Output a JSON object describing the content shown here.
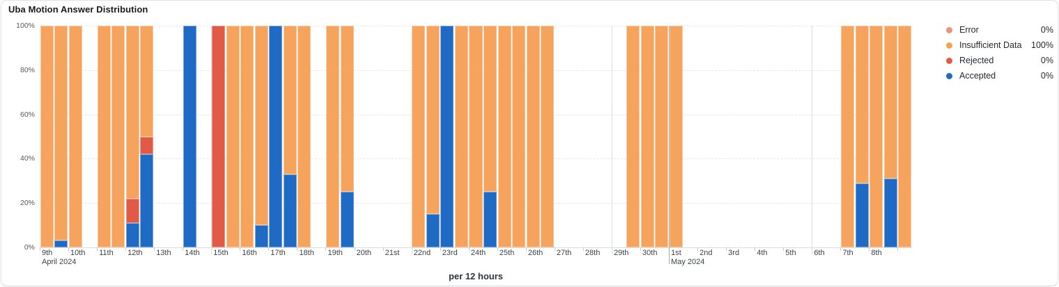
{
  "title": "Uba Motion Answer Distribution",
  "x_axis_title": "per 12 hours",
  "legend": {
    "items": [
      {
        "label": "Error",
        "value": "0%",
        "color": "#ef9181"
      },
      {
        "label": "Insufficient Data",
        "value": "100%",
        "color": "#f6a14e"
      },
      {
        "label": "Rejected",
        "value": "0%",
        "color": "#e05a45"
      },
      {
        "label": "Accepted",
        "value": "0%",
        "color": "#1f6ac5"
      }
    ]
  },
  "chart_data": {
    "type": "bar",
    "stacked": true,
    "unit": "percent",
    "interval": "per 12 hours",
    "ylim": [
      0,
      100
    ],
    "y_tick_labels": [
      "100%",
      "80%",
      "60%",
      "40%",
      "20%",
      "0%"
    ],
    "grid": {
      "horizontal_dashed": true,
      "week_lines_day_indices": [
        6,
        13,
        20,
        27
      ],
      "month_line_day_index": 22
    },
    "day_tick_labels": [
      "9th",
      "10th",
      "11th",
      "12th",
      "13th",
      "14th",
      "15th",
      "16th",
      "17th",
      "18th",
      "19th",
      "20th",
      "21st",
      "22nd",
      "23rd",
      "24th",
      "25th",
      "26th",
      "27th",
      "28th",
      "29th",
      "30th",
      "1st",
      "2nd",
      "3rd",
      "4th",
      "5th",
      "6th",
      "7th",
      "8th"
    ],
    "month_labels": [
      {
        "text": "April 2024",
        "day_index": 0
      },
      {
        "text": "May 2024",
        "day_index": 22
      }
    ],
    "total_slots": 61,
    "stack_order_bottom_to_top": [
      "accepted",
      "rejected",
      "insufficient_data",
      "error"
    ],
    "series_colors": {
      "accepted": "#1f6ac5",
      "rejected": "#e05a45",
      "insufficient_data": "#f6a35e",
      "error": "#ef9181"
    },
    "bars": [
      {
        "slot": 0,
        "slot_label": "Apr 9 AM",
        "accepted": 0,
        "rejected": 0,
        "insufficient_data": 100,
        "error": 0
      },
      {
        "slot": 1,
        "slot_label": "Apr 9 PM",
        "accepted": 3,
        "rejected": 0,
        "insufficient_data": 97,
        "error": 0
      },
      {
        "slot": 2,
        "slot_label": "Apr 10 AM",
        "accepted": 0,
        "rejected": 0,
        "insufficient_data": 100,
        "error": 0
      },
      {
        "slot": 4,
        "slot_label": "Apr 11 AM",
        "accepted": 0,
        "rejected": 0,
        "insufficient_data": 100,
        "error": 0
      },
      {
        "slot": 5,
        "slot_label": "Apr 11 PM",
        "accepted": 0,
        "rejected": 0,
        "insufficient_data": 100,
        "error": 0
      },
      {
        "slot": 6,
        "slot_label": "Apr 12 AM",
        "accepted": 11,
        "rejected": 11,
        "insufficient_data": 78,
        "error": 0
      },
      {
        "slot": 7,
        "slot_label": "Apr 12 PM",
        "accepted": 42,
        "rejected": 8,
        "insufficient_data": 50,
        "error": 0
      },
      {
        "slot": 10,
        "slot_label": "Apr 14 AM",
        "accepted": 100,
        "rejected": 0,
        "insufficient_data": 0,
        "error": 0
      },
      {
        "slot": 12,
        "slot_label": "Apr 15 AM",
        "accepted": 0,
        "rejected": 100,
        "insufficient_data": 0,
        "error": 0
      },
      {
        "slot": 13,
        "slot_label": "Apr 15 PM",
        "accepted": 0,
        "rejected": 0,
        "insufficient_data": 100,
        "error": 0
      },
      {
        "slot": 14,
        "slot_label": "Apr 16 AM",
        "accepted": 0,
        "rejected": 0,
        "insufficient_data": 100,
        "error": 0
      },
      {
        "slot": 15,
        "slot_label": "Apr 16 PM",
        "accepted": 10,
        "rejected": 0,
        "insufficient_data": 90,
        "error": 0
      },
      {
        "slot": 16,
        "slot_label": "Apr 17 AM",
        "accepted": 100,
        "rejected": 0,
        "insufficient_data": 0,
        "error": 0
      },
      {
        "slot": 17,
        "slot_label": "Apr 17 PM",
        "accepted": 33,
        "rejected": 0,
        "insufficient_data": 67,
        "error": 0
      },
      {
        "slot": 18,
        "slot_label": "Apr 18 AM",
        "accepted": 0,
        "rejected": 0,
        "insufficient_data": 100,
        "error": 0
      },
      {
        "slot": 20,
        "slot_label": "Apr 19 AM",
        "accepted": 0,
        "rejected": 0,
        "insufficient_data": 100,
        "error": 0
      },
      {
        "slot": 21,
        "slot_label": "Apr 19 PM",
        "accepted": 25,
        "rejected": 0,
        "insufficient_data": 75,
        "error": 0
      },
      {
        "slot": 26,
        "slot_label": "Apr 22 AM",
        "accepted": 0,
        "rejected": 0,
        "insufficient_data": 100,
        "error": 0
      },
      {
        "slot": 27,
        "slot_label": "Apr 22 PM",
        "accepted": 15,
        "rejected": 0,
        "insufficient_data": 85,
        "error": 0
      },
      {
        "slot": 28,
        "slot_label": "Apr 23 AM",
        "accepted": 100,
        "rejected": 0,
        "insufficient_data": 0,
        "error": 0
      },
      {
        "slot": 29,
        "slot_label": "Apr 23 PM",
        "accepted": 0,
        "rejected": 0,
        "insufficient_data": 100,
        "error": 0
      },
      {
        "slot": 30,
        "slot_label": "Apr 24 AM",
        "accepted": 0,
        "rejected": 0,
        "insufficient_data": 100,
        "error": 0
      },
      {
        "slot": 31,
        "slot_label": "Apr 24 PM",
        "accepted": 25,
        "rejected": 0,
        "insufficient_data": 75,
        "error": 0
      },
      {
        "slot": 32,
        "slot_label": "Apr 25 AM",
        "accepted": 0,
        "rejected": 0,
        "insufficient_data": 100,
        "error": 0
      },
      {
        "slot": 33,
        "slot_label": "Apr 25 PM",
        "accepted": 0,
        "rejected": 0,
        "insufficient_data": 100,
        "error": 0
      },
      {
        "slot": 34,
        "slot_label": "Apr 26 AM",
        "accepted": 0,
        "rejected": 0,
        "insufficient_data": 100,
        "error": 0
      },
      {
        "slot": 35,
        "slot_label": "Apr 26 PM",
        "accepted": 0,
        "rejected": 0,
        "insufficient_data": 100,
        "error": 0
      },
      {
        "slot": 41,
        "slot_label": "Apr 29 PM",
        "accepted": 0,
        "rejected": 0,
        "insufficient_data": 100,
        "error": 0
      },
      {
        "slot": 42,
        "slot_label": "Apr 30 AM",
        "accepted": 0,
        "rejected": 0,
        "insufficient_data": 100,
        "error": 0
      },
      {
        "slot": 43,
        "slot_label": "Apr 30 PM",
        "accepted": 0,
        "rejected": 0,
        "insufficient_data": 100,
        "error": 0
      },
      {
        "slot": 44,
        "slot_label": "May 1 AM",
        "accepted": 0,
        "rejected": 0,
        "insufficient_data": 100,
        "error": 0
      },
      {
        "slot": 56,
        "slot_label": "May 7 AM",
        "accepted": 0,
        "rejected": 0,
        "insufficient_data": 100,
        "error": 0
      },
      {
        "slot": 57,
        "slot_label": "May 7 PM",
        "accepted": 29,
        "rejected": 0,
        "insufficient_data": 71,
        "error": 0
      },
      {
        "slot": 58,
        "slot_label": "May 8 AM",
        "accepted": 0,
        "rejected": 0,
        "insufficient_data": 100,
        "error": 0
      },
      {
        "slot": 59,
        "slot_label": "May 8 PM",
        "accepted": 31,
        "rejected": 0,
        "insufficient_data": 69,
        "error": 0
      },
      {
        "slot": 60,
        "slot_label": "May 9 AM",
        "accepted": 0,
        "rejected": 0,
        "insufficient_data": 100,
        "error": 0
      }
    ]
  }
}
